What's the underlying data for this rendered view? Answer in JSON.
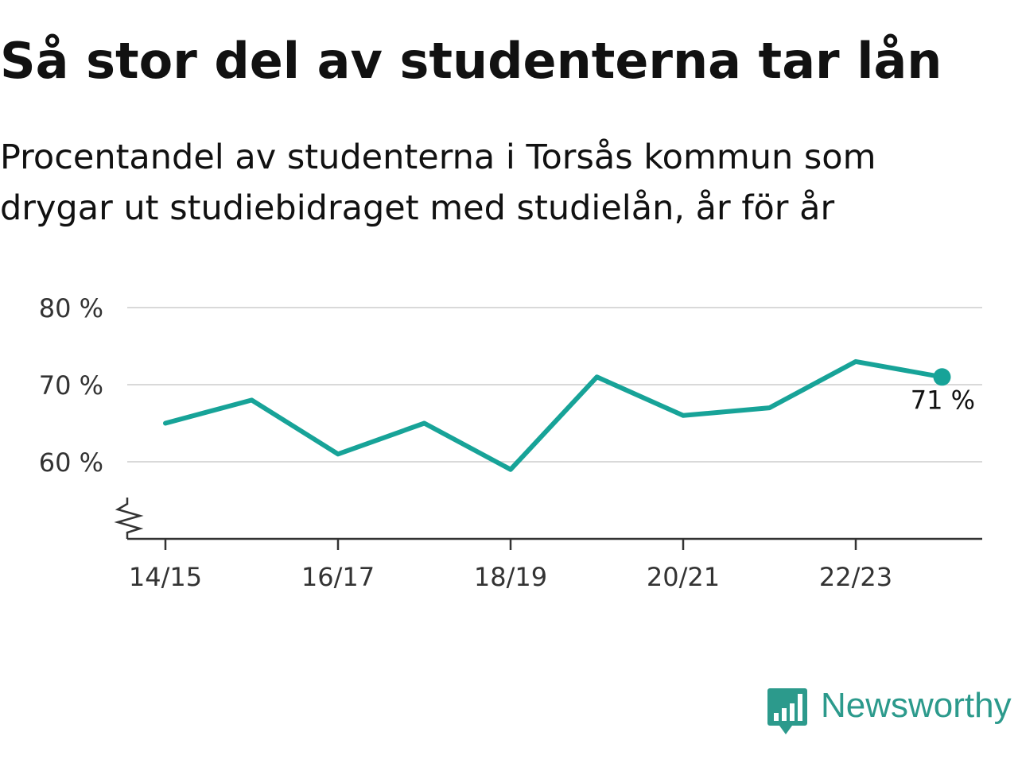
{
  "header": {
    "title": "Så stor del av studenterna tar lån",
    "subtitle_lines": [
      "Procentandel av studenterna i Torsås kommun som",
      "drygar ut studiebidraget med studielån, år för år"
    ]
  },
  "brand": {
    "name": "Newsworthy",
    "logo_icon": "bar-chart-speech-bubble-icon",
    "color": "#2c9a8c"
  },
  "chart_data": {
    "type": "line",
    "title": "Så stor del av studenterna tar lån",
    "xlabel": "",
    "ylabel": "",
    "categories": [
      "14/15",
      "15/16",
      "16/17",
      "17/18",
      "18/19",
      "19/20",
      "20/21",
      "21/22",
      "22/23",
      "23/24"
    ],
    "x_tick_labels": [
      "14/15",
      "16/17",
      "18/19",
      "20/21",
      "22/23"
    ],
    "series": [
      {
        "values": [
          65,
          68,
          61,
          65,
          59,
          71,
          66,
          67,
          73,
          71
        ],
        "color": "#17a398"
      }
    ],
    "y_ticks": [
      60,
      70,
      80
    ],
    "y_tick_labels": [
      "60 %",
      "70 %",
      "80 %"
    ],
    "ylim": [
      50,
      80
    ],
    "grid": true,
    "axis_break": true,
    "last_value_label": "71 %"
  }
}
